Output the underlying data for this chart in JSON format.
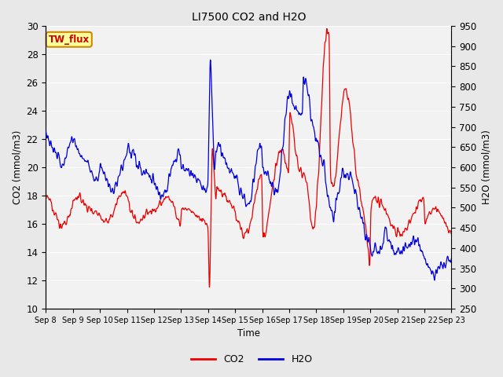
{
  "title": "LI7500 CO2 and H2O",
  "xlabel": "Time",
  "ylabel_left": "CO2 (mmol/m3)",
  "ylabel_right": "H2O (mmol/m3)",
  "ylim_left": [
    10,
    30
  ],
  "ylim_right": [
    250,
    950
  ],
  "annotation_text": "TW_flux",
  "annotation_box_facecolor": "#ffff99",
  "annotation_box_edge": "#cc8800",
  "annotation_text_color": "#cc0000",
  "co2_color": "#ee0000",
  "h2o_color": "#0000dd",
  "fig_bg_color": "#e8e8e8",
  "plot_bg_color": "#f2f2f2",
  "grid_color": "#ffffff",
  "tick_labels": [
    "Sep 8",
    "Sep 9",
    "Sep 10",
    "Sep 11",
    "Sep 12",
    "Sep 13",
    "Sep 14",
    "Sep 15",
    "Sep 16",
    "Sep 17",
    "Sep 18",
    "Sep 19",
    "Sep 20",
    "Sep 21",
    "Sep 22",
    "Sep 23"
  ],
  "tick_positions": [
    8,
    9,
    10,
    11,
    12,
    13,
    14,
    15,
    16,
    17,
    18,
    19,
    20,
    21,
    22,
    23
  ],
  "left_yticks": [
    10,
    12,
    14,
    16,
    18,
    20,
    22,
    24,
    26,
    28,
    30
  ],
  "right_yticks": [
    250,
    300,
    350,
    400,
    450,
    500,
    550,
    600,
    650,
    700,
    750,
    800,
    850,
    900,
    950
  ]
}
